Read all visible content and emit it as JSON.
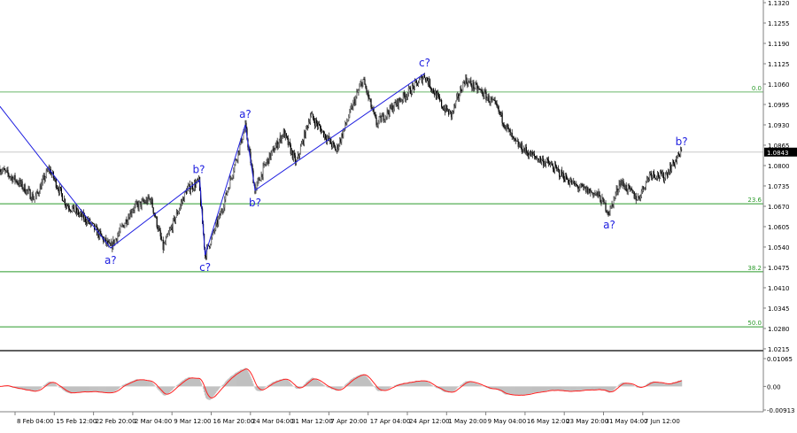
{
  "chart_data": {
    "type": "candlestick",
    "instrument_timeframe": "H4",
    "price_axis": {
      "ticks": [
        "1.1320",
        "1.1255",
        "1.1190",
        "1.1125",
        "1.1060",
        "1.0995",
        "1.0930",
        "1.0865",
        "1.0800",
        "1.0735",
        "1.0670",
        "1.0605",
        "1.0540",
        "1.0475",
        "1.0410",
        "1.0345",
        "1.0280",
        "1.0215"
      ],
      "range": [
        1.0215,
        1.132
      ]
    },
    "time_axis": {
      "ticks": [
        "8 Feb 04:00",
        "15 Feb 12:00",
        "22 Feb 20:00",
        "2 Mar 04:00",
        "9 Mar 12:00",
        "16 Mar 20:00",
        "24 Mar 04:00",
        "31 Mar 12:00",
        "7 Apr 20:00",
        "17 Apr 04:00",
        "24 Apr 12:00",
        "1 May 20:00",
        "9 May 04:00",
        "16 May 12:00",
        "23 May 20:00",
        "31 May 04:00",
        "7 Jun 12:00"
      ]
    },
    "current_price": {
      "label": "1.0843",
      "value": 1.0843
    },
    "price_path": [
      [
        "5 Feb 08:00",
        1.079
      ],
      [
        "8 Feb 16:00",
        1.0749
      ],
      [
        "11 Feb 20:00",
        1.0693
      ],
      [
        "14 Feb 12:00",
        1.0791
      ],
      [
        "17 Feb 16:00",
        1.0678
      ],
      [
        "21 Feb 20:00",
        1.0622
      ],
      [
        "26 Feb 00:00",
        1.0537
      ],
      [
        "2 Mar 04:00",
        1.0664
      ],
      [
        "5 Mar 12:00",
        1.0693
      ],
      [
        "7 Mar 20:00",
        1.0537
      ],
      [
        "12 Mar 04:00",
        1.0721
      ],
      [
        "14 Mar 12:00",
        1.0749
      ],
      [
        "15 Mar 16:00",
        1.0514
      ],
      [
        "18 Mar 16:00",
        1.065
      ],
      [
        "23 Mar 04:00",
        1.0924
      ],
      [
        "25 Mar 00:00",
        1.0721
      ],
      [
        "27 Mar 00:00",
        1.0806
      ],
      [
        "30 Mar 08:00",
        1.0905
      ],
      [
        "1 Apr 16:00",
        1.0806
      ],
      [
        "4 Apr 08:00",
        1.0961
      ],
      [
        "9 Apr 04:00",
        1.0848
      ],
      [
        "12 Apr 12:00",
        1.1003
      ],
      [
        "14 Apr 04:00",
        1.1074
      ],
      [
        "16 Apr 16:00",
        1.0933
      ],
      [
        "19 Apr 20:00",
        1.0989
      ],
      [
        "24 Apr 04:00",
        1.106
      ],
      [
        "25 Apr 16:00",
        1.1088
      ],
      [
        "29 Apr 00:00",
        1.0989
      ],
      [
        "30 Apr 16:00",
        1.0961
      ],
      [
        "3 May 04:00",
        1.1074
      ],
      [
        "6 May 12:00",
        1.1032
      ],
      [
        "9 May 00:00",
        1.0989
      ],
      [
        "12 May 08:00",
        1.0876
      ],
      [
        "15 May 12:00",
        1.0834
      ],
      [
        "18 May 20:00",
        1.0806
      ],
      [
        "23 May 20:00",
        1.0735
      ],
      [
        "28 May 00:00",
        1.0707
      ],
      [
        "30 May 04:00",
        1.065
      ],
      [
        "1 Jun 04:00",
        1.0749
      ],
      [
        "4 Jun 12:00",
        1.0693
      ],
      [
        "6 Jun 20:00",
        1.0777
      ],
      [
        "9 Jun 08:00",
        1.0763
      ],
      [
        "12 Jun 16:00",
        1.0843
      ]
    ],
    "fibonacci_levels": [
      {
        "label": "0.0",
        "price": 1.1035
      },
      {
        "label": "23.6",
        "price": 1.0678
      },
      {
        "label": "38.2",
        "price": 1.0461
      },
      {
        "label": "50.0",
        "price": 1.0285
      }
    ],
    "wave_lines": [
      [
        "5 Feb 08:00",
        1.0989
      ],
      [
        "26 Feb 00:00",
        1.0537
      ],
      [
        "14 Mar 16:00",
        1.0754
      ],
      [
        "15 Mar 16:00",
        1.0514
      ],
      [
        "23 Mar 04:00",
        1.093
      ],
      [
        "25 Mar 00:00",
        1.0721
      ],
      [
        "25 Apr 16:00",
        1.1094
      ]
    ],
    "wave_labels": [
      {
        "text": "a?",
        "date": "26 Feb 00:00",
        "price": 1.0537,
        "position": "below"
      },
      {
        "text": "b?",
        "date": "14 Mar 12:00",
        "price": 1.0754,
        "position": "above"
      },
      {
        "text": "c?",
        "date": "15 Mar 16:00",
        "price": 1.0514,
        "position": "below"
      },
      {
        "text": "a?",
        "date": "23 Mar 04:00",
        "price": 1.093,
        "position": "above"
      },
      {
        "text": "b?",
        "date": "25 Mar 00:00",
        "price": 1.0721,
        "position": "below"
      },
      {
        "text": "c?",
        "date": "25 Apr 16:00",
        "price": 1.1094,
        "position": "above"
      },
      {
        "text": "a?",
        "date": "30 May 04:00",
        "price": 1.065,
        "position": "below"
      },
      {
        "text": "b?",
        "date": "12 Jun 16:00",
        "price": 1.0843,
        "position": "above"
      }
    ],
    "oscillator": {
      "ticks": [
        "0.01065",
        "0.00",
        "-0.00913"
      ],
      "range": [
        -0.00913,
        0.01065
      ],
      "histogram_color": "#c0c0c0",
      "signal_color": "#ff2020"
    },
    "colors": {
      "candles": "#000000",
      "fib": "#2a9a2a",
      "wave": "#2020e0",
      "current_line": "#c8c8c8"
    }
  }
}
